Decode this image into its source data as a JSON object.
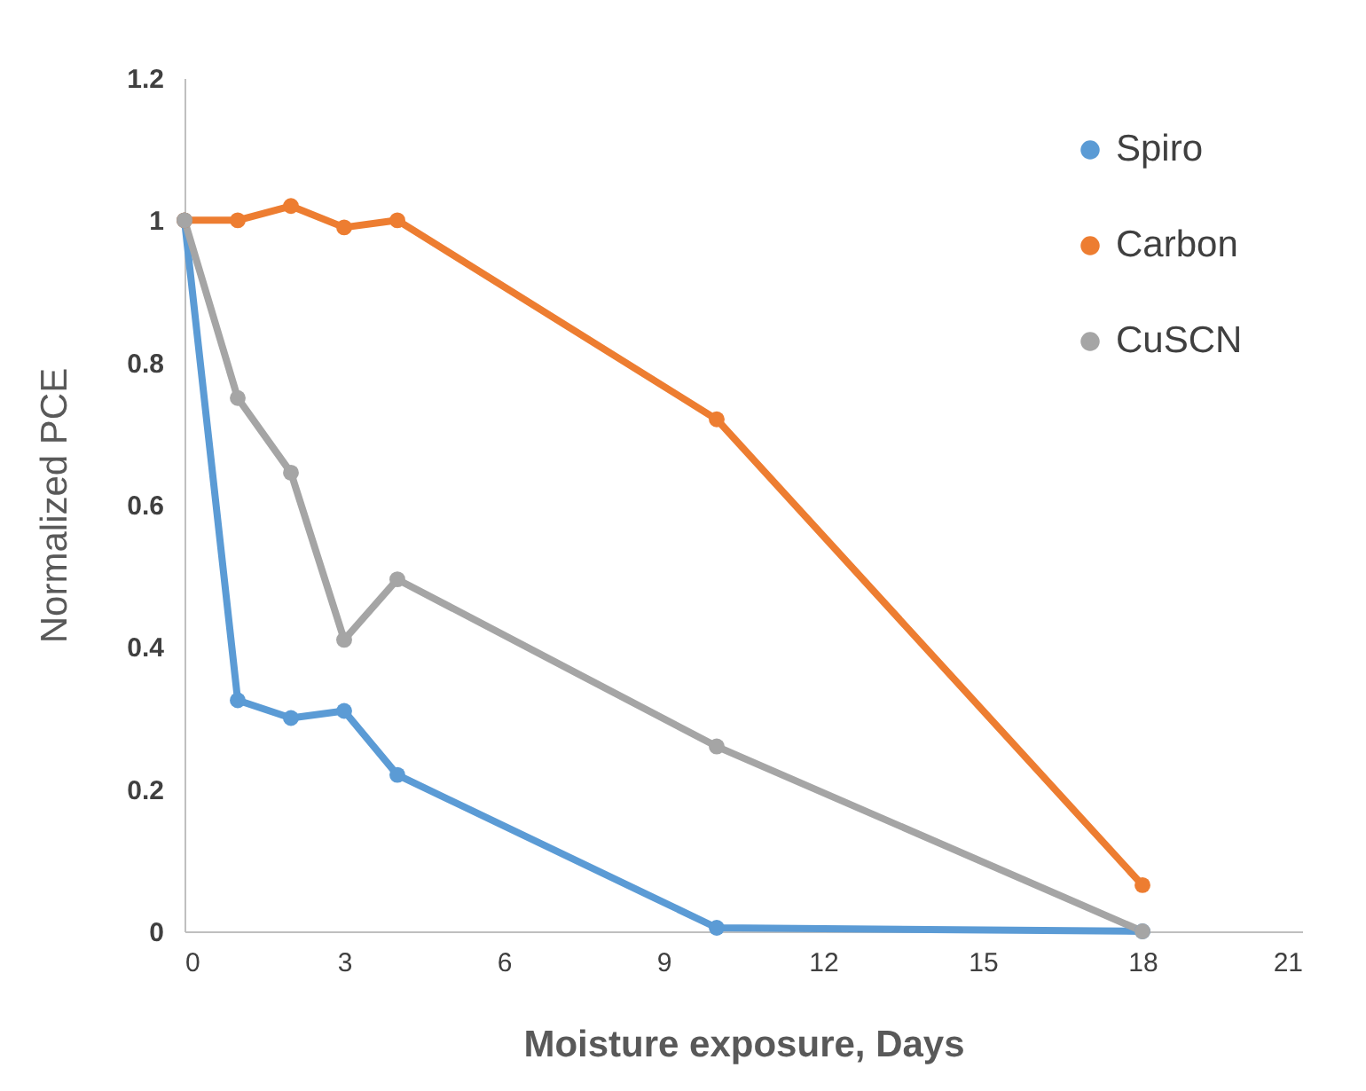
{
  "chart_data": {
    "type": "line",
    "xlabel": "Moisture exposure, Days",
    "ylabel": "Normalized  PCE",
    "xlim": [
      0,
      21
    ],
    "xticks": [
      0,
      3,
      6,
      9,
      12,
      15,
      18,
      21
    ],
    "ylim": [
      0,
      1.2
    ],
    "yticks": [
      0,
      0.2,
      0.4,
      0.6,
      0.8,
      1,
      1.2
    ],
    "grid": false,
    "legend": "top right",
    "marker": "circle",
    "line_style": "solid",
    "x": [
      0,
      1,
      2,
      3,
      4,
      10,
      18
    ],
    "series": [
      {
        "name": "Spiro",
        "color": "#5b9bd5",
        "values": [
          1,
          0.325,
          0.3,
          0.31,
          0.22,
          0.005,
          0
        ]
      },
      {
        "name": "Carbon",
        "color": "#ed7d31",
        "values": [
          1,
          1,
          1.02,
          0.99,
          1,
          0.72,
          0.065
        ]
      },
      {
        "name": "CuSCN",
        "color": "#a5a5a5",
        "values": [
          1,
          0.75,
          0.645,
          0.41,
          0.495,
          0.26,
          0
        ]
      }
    ]
  }
}
